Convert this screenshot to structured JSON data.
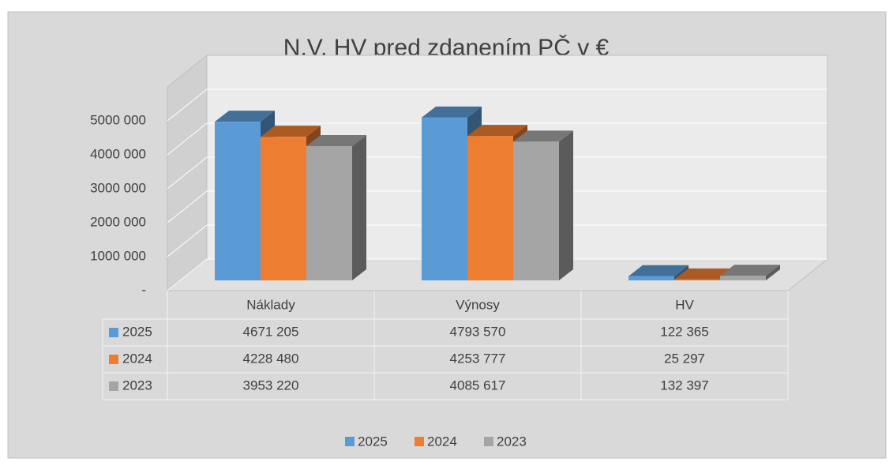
{
  "chart_data": {
    "type": "bar3d",
    "title": "N,V, HV pred zdanením PČ v €",
    "categories": [
      "Náklady",
      "Výnosy",
      "HV"
    ],
    "series": [
      {
        "name": "2025",
        "color": "#5b9bd5",
        "values": [
          4671205,
          4793570,
          122365
        ],
        "value_labels": [
          "4671 205",
          "4793 570",
          "122 365"
        ]
      },
      {
        "name": "2024",
        "color": "#ed7d31",
        "values": [
          4228480,
          4253777,
          25297
        ],
        "value_labels": [
          "4228 480",
          "4253 777",
          "25 297"
        ]
      },
      {
        "name": "2023",
        "color": "#a5a5a5",
        "values": [
          3953220,
          4085617,
          132397
        ],
        "value_labels": [
          "3953 220",
          "4085 617",
          "132 397"
        ]
      }
    ],
    "ylim": [
      0,
      6000000
    ],
    "yticks": [
      {
        "value": 0,
        "label": "-"
      },
      {
        "value": 1000000,
        "label": "1000 000"
      },
      {
        "value": 2000000,
        "label": "2000 000"
      },
      {
        "value": 3000000,
        "label": "3000 000"
      },
      {
        "value": 4000000,
        "label": "4000 000"
      },
      {
        "value": 5000000,
        "label": "5000 000"
      }
    ],
    "grid": true,
    "legend": "bottom"
  }
}
